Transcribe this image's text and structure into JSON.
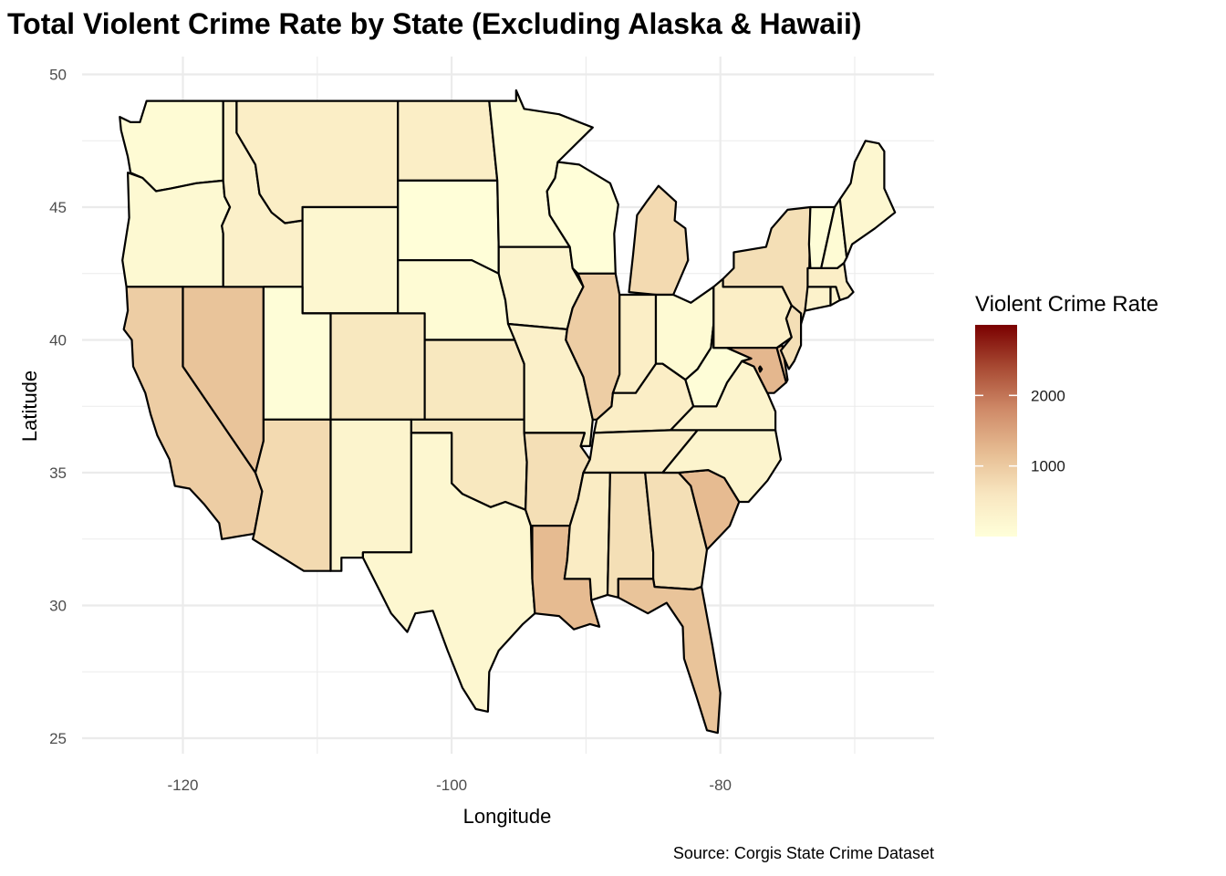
{
  "title": "Total Violent Crime Rate by State (Excluding Alaska & Hawaii)",
  "caption": "Source: Corgis State Crime Dataset",
  "chart_data": {
    "type": "map",
    "title": "Total Violent Crime Rate by State (Excluding Alaska & Hawaii)",
    "xlabel": "Longitude",
    "ylabel": "Latitude",
    "xlim": [
      -127.5,
      -65.5
    ],
    "ylim": [
      24,
      50.5
    ],
    "x_ticks": [
      -120,
      -100,
      -80
    ],
    "y_ticks": [
      25,
      30,
      35,
      40,
      45,
      50
    ],
    "grid": true,
    "legend": {
      "title": "Violent Crime Rate",
      "position": "right",
      "range": [
        0,
        3000
      ],
      "ticks": [
        1000,
        2000
      ],
      "color_low": "#ffffd9",
      "color_high": "#7a0000"
    },
    "states": [
      {
        "name": "Washington",
        "value": 100
      },
      {
        "name": "Oregon",
        "value": 150
      },
      {
        "name": "California",
        "value": 800
      },
      {
        "name": "Nevada",
        "value": 900
      },
      {
        "name": "Idaho",
        "value": 350
      },
      {
        "name": "Montana",
        "value": 400
      },
      {
        "name": "Wyoming",
        "value": 200
      },
      {
        "name": "Utah",
        "value": 50
      },
      {
        "name": "Arizona",
        "value": 650
      },
      {
        "name": "Colorado",
        "value": 500
      },
      {
        "name": "New Mexico",
        "value": 250
      },
      {
        "name": "North Dakota",
        "value": 400
      },
      {
        "name": "South Dakota",
        "value": 30
      },
      {
        "name": "Nebraska",
        "value": 100
      },
      {
        "name": "Kansas",
        "value": 500
      },
      {
        "name": "Oklahoma",
        "value": 500
      },
      {
        "name": "Texas",
        "value": 200
      },
      {
        "name": "Minnesota",
        "value": 100
      },
      {
        "name": "Iowa",
        "value": 250
      },
      {
        "name": "Missouri",
        "value": 350
      },
      {
        "name": "Arkansas",
        "value": 600
      },
      {
        "name": "Louisiana",
        "value": 1000
      },
      {
        "name": "Wisconsin",
        "value": 30
      },
      {
        "name": "Illinois",
        "value": 800
      },
      {
        "name": "Michigan",
        "value": 650
      },
      {
        "name": "Indiana",
        "value": 400
      },
      {
        "name": "Ohio",
        "value": 120
      },
      {
        "name": "Kentucky",
        "value": 400
      },
      {
        "name": "Tennessee",
        "value": 450
      },
      {
        "name": "Mississippi",
        "value": 450
      },
      {
        "name": "Alabama",
        "value": 600
      },
      {
        "name": "Georgia",
        "value": 600
      },
      {
        "name": "Florida",
        "value": 900
      },
      {
        "name": "South Carolina",
        "value": 1000
      },
      {
        "name": "North Carolina",
        "value": 250
      },
      {
        "name": "Virginia",
        "value": 250
      },
      {
        "name": "West Virginia",
        "value": 50
      },
      {
        "name": "Pennsylvania",
        "value": 400
      },
      {
        "name": "New York",
        "value": 600
      },
      {
        "name": "Maryland",
        "value": 1050
      },
      {
        "name": "Delaware",
        "value": 900
      },
      {
        "name": "New Jersey",
        "value": 600
      },
      {
        "name": "Connecticut",
        "value": 300
      },
      {
        "name": "Rhode Island",
        "value": 300
      },
      {
        "name": "Massachusetts",
        "value": 400
      },
      {
        "name": "Vermont",
        "value": 50
      },
      {
        "name": "New Hampshire",
        "value": 100
      },
      {
        "name": "Maine",
        "value": 200
      },
      {
        "name": "District of Columbia",
        "value": 2500
      }
    ]
  }
}
